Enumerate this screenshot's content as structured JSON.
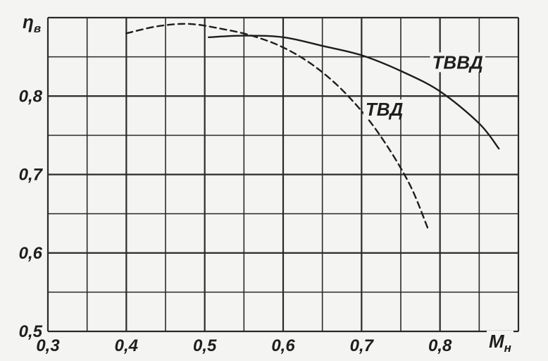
{
  "chart_data": {
    "type": "line",
    "title": "",
    "xlabel": {
      "main": "M",
      "sub": "н"
    },
    "ylabel": {
      "main": "η",
      "sub": "в"
    },
    "xlim": [
      0.3,
      0.9
    ],
    "ylim": [
      0.5,
      0.9
    ],
    "grid": true,
    "x_ticks": [
      {
        "value": 0.3,
        "label": "0,3"
      },
      {
        "value": 0.4,
        "label": "0,4"
      },
      {
        "value": 0.5,
        "label": "0,5"
      },
      {
        "value": 0.6,
        "label": "0,6"
      },
      {
        "value": 0.7,
        "label": "0,7"
      },
      {
        "value": 0.8,
        "label": "0,8"
      }
    ],
    "y_ticks": [
      {
        "value": 0.5,
        "label": "0,5"
      },
      {
        "value": 0.6,
        "label": "0,6"
      },
      {
        "value": 0.7,
        "label": "0,7"
      },
      {
        "value": 0.8,
        "label": "0,8"
      }
    ],
    "series": [
      {
        "name": "ТВВД",
        "style": "solid",
        "color": "#1e1e1e",
        "label_at": [
          0.79,
          0.835
        ],
        "points": [
          [
            0.505,
            0.875
          ],
          [
            0.55,
            0.877
          ],
          [
            0.6,
            0.875
          ],
          [
            0.65,
            0.864
          ],
          [
            0.7,
            0.852
          ],
          [
            0.75,
            0.832
          ],
          [
            0.8,
            0.806
          ],
          [
            0.85,
            0.765
          ],
          [
            0.875,
            0.733
          ]
        ]
      },
      {
        "name": "ТВД",
        "style": "dashed",
        "color": "#1e1e1e",
        "label_at": [
          0.705,
          0.775
        ],
        "points": [
          [
            0.4,
            0.88
          ],
          [
            0.44,
            0.889
          ],
          [
            0.48,
            0.892
          ],
          [
            0.52,
            0.886
          ],
          [
            0.56,
            0.877
          ],
          [
            0.6,
            0.862
          ],
          [
            0.64,
            0.838
          ],
          [
            0.68,
            0.803
          ],
          [
            0.72,
            0.755
          ],
          [
            0.76,
            0.69
          ],
          [
            0.785,
            0.63
          ]
        ]
      }
    ]
  }
}
